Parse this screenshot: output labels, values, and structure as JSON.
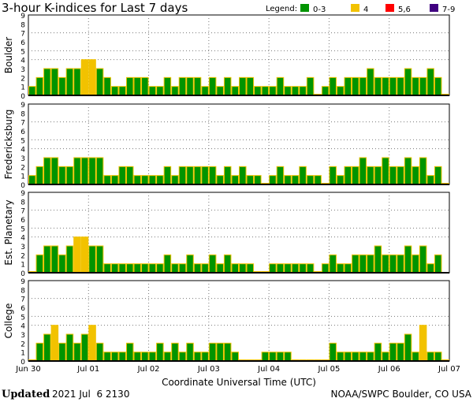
{
  "chart_data": {
    "type": "bar",
    "title": "3-hour K-indices for Last 7 days",
    "xlabel": "Coordinate Universal Time (UTC)",
    "ylim": [
      0,
      9
    ],
    "yticks": [
      "0",
      "1",
      "2",
      "3",
      "4",
      "5",
      "6",
      "7",
      "8",
      "9"
    ],
    "xticks": [
      "Jun 30",
      "Jul 01",
      "Jul 02",
      "Jul 03",
      "Jul 04",
      "Jul 05",
      "Jul 06",
      "Jul 07"
    ],
    "bars_per_day": 8,
    "legend": {
      "label": "Legend:",
      "placement": "top-right",
      "entries": [
        {
          "label": "0-3",
          "color": "#009400"
        },
        {
          "label": "4",
          "color": "#f2c200"
        },
        {
          "label": "5,6",
          "color": "#ff0000"
        },
        {
          "label": "7-9",
          "color": "#400080"
        }
      ]
    },
    "panels": [
      {
        "name": "Boulder",
        "values": [
          1,
          2,
          3,
          3,
          2,
          3,
          3,
          4,
          4,
          3,
          2,
          1,
          1,
          2,
          2,
          2,
          1,
          1,
          2,
          1,
          2,
          2,
          2,
          1,
          2,
          1,
          2,
          1,
          2,
          2,
          1,
          1,
          1,
          2,
          1,
          1,
          1,
          2,
          0,
          1,
          2,
          1,
          2,
          2,
          2,
          3,
          2,
          2,
          2,
          2,
          3,
          2,
          2,
          3,
          2,
          0
        ]
      },
      {
        "name": "Fredericksburg",
        "values": [
          1,
          2,
          3,
          3,
          2,
          2,
          3,
          3,
          3,
          3,
          1,
          1,
          2,
          2,
          1,
          1,
          1,
          1,
          2,
          1,
          2,
          2,
          2,
          2,
          2,
          1,
          2,
          1,
          2,
          1,
          1,
          0,
          1,
          2,
          1,
          1,
          2,
          1,
          1,
          0,
          2,
          1,
          2,
          2,
          3,
          2,
          2,
          3,
          2,
          2,
          3,
          2,
          3,
          1,
          2,
          0
        ]
      },
      {
        "name": "Est. Planetary",
        "values": [
          0,
          2,
          3,
          3,
          2,
          3,
          4,
          4,
          3,
          3,
          1,
          1,
          1,
          1,
          1,
          1,
          1,
          1,
          2,
          1,
          1,
          2,
          1,
          1,
          2,
          1,
          2,
          1,
          1,
          1,
          0,
          0,
          1,
          1,
          1,
          1,
          1,
          1,
          0,
          1,
          2,
          1,
          1,
          2,
          2,
          2,
          3,
          2,
          2,
          2,
          3,
          2,
          3,
          1,
          2,
          null
        ]
      },
      {
        "name": "College",
        "values": [
          0,
          2,
          3,
          4,
          2,
          3,
          2,
          3,
          4,
          2,
          1,
          1,
          1,
          2,
          1,
          1,
          1,
          2,
          1,
          2,
          1,
          2,
          1,
          1,
          2,
          2,
          2,
          1,
          0,
          0,
          0,
          1,
          1,
          1,
          1,
          0,
          0,
          0,
          0,
          0,
          2,
          1,
          1,
          1,
          1,
          1,
          2,
          1,
          2,
          2,
          3,
          1,
          4,
          1,
          1,
          0
        ]
      }
    ]
  },
  "footer": {
    "updated_label": "Updated",
    "updated_value": "2021 Jul  6 2130",
    "credit": "NOAA/SWPC Boulder, CO USA"
  }
}
